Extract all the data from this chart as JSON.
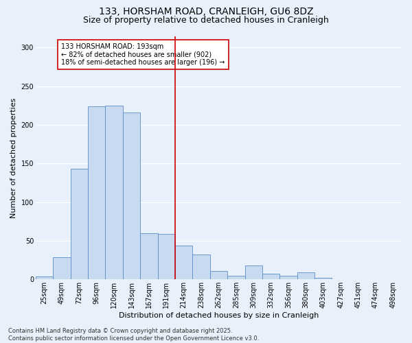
{
  "title": "133, HORSHAM ROAD, CRANLEIGH, GU6 8DZ",
  "subtitle": "Size of property relative to detached houses in Cranleigh",
  "xlabel": "Distribution of detached houses by size in Cranleigh",
  "ylabel": "Number of detached properties",
  "categories": [
    "25sqm",
    "49sqm",
    "72sqm",
    "96sqm",
    "120sqm",
    "143sqm",
    "167sqm",
    "191sqm",
    "214sqm",
    "238sqm",
    "262sqm",
    "285sqm",
    "309sqm",
    "332sqm",
    "356sqm",
    "380sqm",
    "403sqm",
    "427sqm",
    "451sqm",
    "474sqm",
    "498sqm"
  ],
  "values": [
    4,
    29,
    143,
    224,
    225,
    216,
    60,
    59,
    44,
    32,
    11,
    5,
    18,
    7,
    5,
    9,
    2,
    0,
    0,
    0,
    0
  ],
  "bar_color": "#c8daf0",
  "bar_edge_color": "#5b8dc8",
  "vline_color": "#cc0000",
  "annotation_text": "133 HORSHAM ROAD: 193sqm\n← 82% of detached houses are smaller (902)\n18% of semi-detached houses are larger (196) →",
  "annotation_box_facecolor": "#ffffff",
  "annotation_box_edgecolor": "#cc0000",
  "ylim": [
    0,
    315
  ],
  "yticks": [
    0,
    50,
    100,
    150,
    200,
    250,
    300
  ],
  "footer": "Contains HM Land Registry data © Crown copyright and database right 2025.\nContains public sector information licensed under the Open Government Licence v3.0.",
  "background_color": "#e8f0fb",
  "grid_color": "#ffffff",
  "title_fontsize": 10,
  "subtitle_fontsize": 9,
  "xlabel_fontsize": 8,
  "ylabel_fontsize": 8,
  "tick_fontsize": 7,
  "annot_fontsize": 7,
  "footer_fontsize": 6
}
